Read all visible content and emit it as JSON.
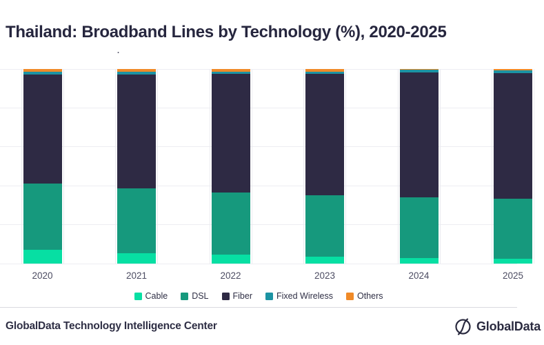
{
  "title": "Thailand: Broadband Lines by Technology (%), 2020-2025",
  "artifact_dot": ".",
  "chart_data": {
    "type": "bar",
    "stacked": true,
    "stacking": "percent",
    "title": "Thailand: Broadband Lines by Technology (%), 2020-2025",
    "xlabel": "",
    "ylabel": "",
    "ylim": [
      0,
      100
    ],
    "grid": true,
    "gridlines_percent": [
      0,
      20,
      40,
      60,
      80,
      100
    ],
    "y_axis_tick_labels_visible": false,
    "legend_position": "bottom",
    "categories": [
      "2020",
      "2021",
      "2022",
      "2023",
      "2024",
      "2025"
    ],
    "series": [
      {
        "name": "Cable",
        "color": "#07DFA3",
        "values": [
          7,
          5.5,
          4.5,
          3.5,
          3,
          2.5
        ]
      },
      {
        "name": "DSL",
        "color": "#16997D",
        "values": [
          34,
          33,
          32,
          31.5,
          31,
          30.75
        ]
      },
      {
        "name": "Fiber",
        "color": "#2E2A44",
        "values": [
          56,
          58.5,
          61,
          62.5,
          64.25,
          64.75
        ]
      },
      {
        "name": "Fixed Wireless",
        "color": "#1C93A3",
        "values": [
          1.5,
          1.5,
          1.25,
          1.25,
          1.25,
          1.25
        ]
      },
      {
        "name": "Others",
        "color": "#F08A28",
        "values": [
          1.5,
          1.5,
          1.25,
          1.25,
          0.5,
          0.75
        ]
      }
    ]
  },
  "footer": {
    "source_label": "GlobalData Technology Intelligence Center",
    "logo_text": "GlobalData"
  },
  "colors": {
    "title_text": "#26263E",
    "axis_label_text": "#4C4C62",
    "gridline": "#EDEDF2",
    "separator": "#DADADF",
    "footer_text": "#2F2F45"
  }
}
